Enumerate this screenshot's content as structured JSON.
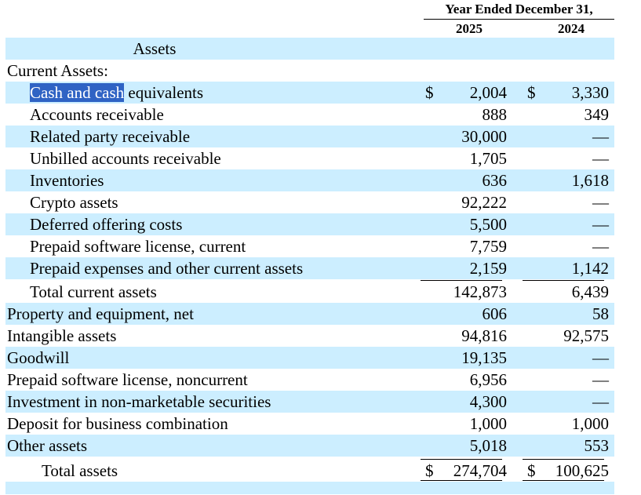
{
  "header": {
    "period": "Year Ended December 31,",
    "year1": "2025",
    "year2": "2024"
  },
  "section_title": "Assets",
  "current_assets_heading": "Current Assets:",
  "cash": {
    "label_selected": "Cash and cash",
    "label_rest": " equivalents",
    "dollar1": "$",
    "v2025": "2,004",
    "dollar2": "$",
    "v2024": "3,330"
  },
  "rows": [
    {
      "label": "Accounts receivable",
      "v2025": "888",
      "v2024": "349"
    },
    {
      "label": "Related party receivable",
      "v2025": "30,000",
      "v2024": "—"
    },
    {
      "label": "Unbilled accounts receivable",
      "v2025": "1,705",
      "v2024": "—"
    },
    {
      "label": "Inventories",
      "v2025": "636",
      "v2024": "1,618"
    },
    {
      "label": "Crypto assets",
      "v2025": "92,222",
      "v2024": "—"
    },
    {
      "label": "Deferred offering costs",
      "v2025": "5,500",
      "v2024": "—"
    },
    {
      "label": "Prepaid software license, current",
      "v2025": "7,759",
      "v2024": "—"
    },
    {
      "label": "Prepaid expenses and other current assets",
      "v2025": "2,159",
      "v2024": "1,142"
    },
    {
      "label": "Total current assets",
      "v2025": "142,873",
      "v2024": "6,439"
    },
    {
      "label": "Property and equipment, net",
      "v2025": "606",
      "v2024": "58"
    },
    {
      "label": "Intangible assets",
      "v2025": "94,816",
      "v2024": "92,575"
    },
    {
      "label": "Goodwill",
      "v2025": "19,135",
      "v2024": "—"
    },
    {
      "label": "Prepaid software license, noncurrent",
      "v2025": "6,956",
      "v2024": "—"
    },
    {
      "label": "Investment in non-marketable securities",
      "v2025": "4,300",
      "v2024": "—"
    },
    {
      "label": "Deposit for business combination",
      "v2025": "1,000",
      "v2024": "1,000"
    },
    {
      "label": "Other assets",
      "v2025": "5,018",
      "v2024": "553"
    }
  ],
  "total": {
    "label": "Total assets",
    "dollar1": "$",
    "v2025": "274,704",
    "dollar2": "$",
    "v2024": "100,625"
  }
}
